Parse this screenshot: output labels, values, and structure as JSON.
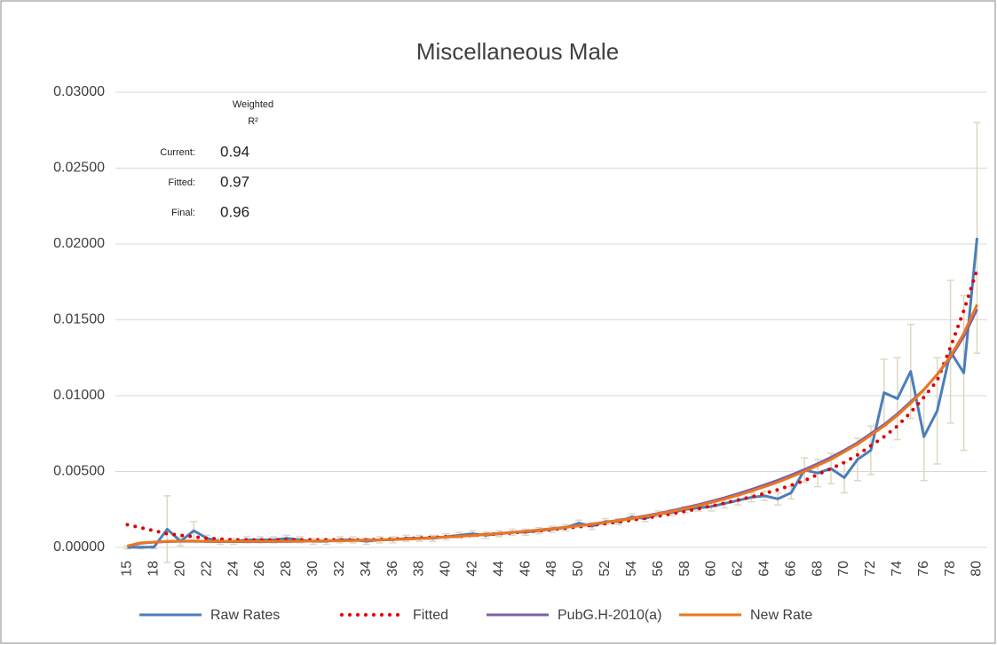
{
  "chart_data": {
    "type": "line",
    "title": "Miscellaneous Male",
    "categories": [
      15,
      null,
      18,
      null,
      20,
      null,
      22,
      null,
      24,
      null,
      26,
      null,
      28,
      null,
      30,
      null,
      32,
      null,
      34,
      null,
      36,
      null,
      38,
      null,
      40,
      null,
      42,
      null,
      44,
      null,
      46,
      null,
      48,
      null,
      50,
      null,
      52,
      null,
      54,
      null,
      56,
      null,
      58,
      null,
      60,
      null,
      62,
      null,
      64,
      null,
      66,
      null,
      68,
      null,
      70,
      null,
      72,
      null,
      74,
      null,
      76,
      null,
      78,
      null,
      80
    ],
    "ylim": [
      0,
      0.03
    ],
    "yticks": [
      {
        "value": 0,
        "label": "0.00000"
      },
      {
        "value": 0.005,
        "label": "0.00500"
      },
      {
        "value": 0.01,
        "label": "0.01000"
      },
      {
        "value": 0.015,
        "label": "0.01500"
      },
      {
        "value": 0.02,
        "label": "0.02000"
      },
      {
        "value": 0.025,
        "label": "0.02500"
      },
      {
        "value": 0.03,
        "label": "0.03000"
      }
    ],
    "grid": true,
    "legend": "bottom",
    "error_color": "#ddd8c0",
    "series": [
      {
        "name": "Raw Rates",
        "color": "#4a7ebb",
        "dash": "solid",
        "values": [
          1e-05,
          1e-05,
          2e-05,
          0.0012,
          0.0004,
          0.0011,
          0.0006,
          0.0004,
          0.0004,
          0.0005,
          0.0005,
          0.0005,
          0.0006,
          0.0005,
          0.0004,
          0.0004,
          0.0005,
          0.0005,
          0.0004,
          0.0005,
          0.0005,
          0.0006,
          0.0006,
          0.0006,
          0.0007,
          0.0008,
          0.0009,
          0.0008,
          0.0009,
          0.001,
          0.001,
          0.0011,
          0.0012,
          0.0013,
          0.0016,
          0.0014,
          0.0017,
          0.0017,
          0.002,
          0.0019,
          0.0022,
          0.0023,
          0.0025,
          0.0026,
          0.0027,
          0.0029,
          0.0031,
          0.0033,
          0.0034,
          0.0032,
          0.0036,
          0.0051,
          0.0049,
          0.0052,
          0.0046,
          0.0058,
          0.0064,
          0.0102,
          0.0098,
          0.0116,
          0.0073,
          0.009,
          0.0129,
          0.0115,
          0.0204
        ],
        "errors": [
          0.0001,
          0.0001,
          0.0001,
          0.0022,
          0.0003,
          0.0006,
          0.0002,
          0.0002,
          0.0002,
          0.0002,
          0.0002,
          0.0002,
          0.0002,
          0.0002,
          0.0002,
          0.0002,
          0.0002,
          0.0002,
          0.0002,
          0.0002,
          0.0002,
          0.0002,
          0.0002,
          0.0002,
          0.0002,
          0.0002,
          0.0002,
          0.0002,
          0.0002,
          0.0002,
          0.0002,
          0.0002,
          0.0002,
          0.0002,
          0.0002,
          0.0002,
          0.0002,
          0.0002,
          0.0002,
          0.0002,
          0.0002,
          0.0002,
          0.0002,
          0.0002,
          0.0003,
          0.0003,
          0.0003,
          0.0003,
          0.0003,
          0.0004,
          0.0004,
          0.0008,
          0.0009,
          0.001,
          0.001,
          0.0014,
          0.0016,
          0.0022,
          0.0027,
          0.0031,
          0.0029,
          0.0035,
          0.0047,
          0.0051,
          0.0076
        ]
      },
      {
        "name": "Fitted",
        "color": "#e00000",
        "dash": "dotted",
        "values": [
          0.0015,
          0.0013,
          0.0011,
          0.0009,
          0.0008,
          0.0007,
          0.0006,
          0.00055,
          0.0005,
          0.0005,
          0.0005,
          0.0005,
          0.0005,
          0.0005,
          0.0005,
          0.0005,
          0.0005,
          0.0005,
          0.0005,
          0.00052,
          0.00055,
          0.00058,
          0.00062,
          0.00066,
          0.0007,
          0.00074,
          0.00079,
          0.00084,
          0.0009,
          0.00096,
          0.00103,
          0.0011,
          0.00118,
          0.00127,
          0.00136,
          0.00146,
          0.00157,
          0.00168,
          0.0018,
          0.00193,
          0.00207,
          0.00222,
          0.00238,
          0.00255,
          0.00273,
          0.00292,
          0.00312,
          0.00333,
          0.00356,
          0.0038,
          0.0041,
          0.0044,
          0.0048,
          0.0052,
          0.0056,
          0.0061,
          0.0067,
          0.0073,
          0.008,
          0.0089,
          0.0099,
          0.011,
          0.0132,
          0.0156,
          0.0183
        ]
      },
      {
        "name": "PubG.H-2010(a)",
        "color": "#7f5fa8",
        "dash": "solid",
        "values": [
          5e-05,
          0.00028,
          0.00034,
          0.00038,
          0.0004,
          0.0004,
          0.00039,
          0.00038,
          0.00038,
          0.00038,
          0.00038,
          0.00039,
          0.00039,
          0.0004,
          0.00042,
          0.00043,
          0.00044,
          0.00046,
          0.00048,
          0.0005,
          0.00053,
          0.00056,
          0.0006,
          0.00064,
          0.00069,
          0.00074,
          0.0008,
          0.00086,
          0.00092,
          0.00099,
          0.00107,
          0.00115,
          0.00124,
          0.00133,
          0.00143,
          0.00154,
          0.00166,
          0.00179,
          0.00193,
          0.00208,
          0.00224,
          0.00242,
          0.00261,
          0.00282,
          0.00304,
          0.00328,
          0.00354,
          0.00382,
          0.00412,
          0.00443,
          0.00477,
          0.00513,
          0.00552,
          0.00594,
          0.0064,
          0.0069,
          0.0075,
          0.0081,
          0.0088,
          0.0096,
          0.0104,
          0.0114,
          0.0125,
          0.0139,
          0.0157
        ]
      },
      {
        "name": "New Rate",
        "color": "#e87722",
        "dash": "solid",
        "values": [
          0.0001,
          0.0003,
          0.00035,
          0.0004,
          0.00042,
          0.00042,
          0.0004,
          0.0004,
          0.0004,
          0.0004,
          0.0004,
          0.0004,
          0.0004,
          0.00041,
          0.00042,
          0.00043,
          0.00044,
          0.00045,
          0.00047,
          0.0005,
          0.00052,
          0.00055,
          0.00058,
          0.00063,
          0.00068,
          0.00073,
          0.00079,
          0.00085,
          0.00091,
          0.00098,
          0.00106,
          0.00114,
          0.00123,
          0.00132,
          0.00142,
          0.00153,
          0.00165,
          0.00177,
          0.0019,
          0.00205,
          0.0022,
          0.00237,
          0.00255,
          0.00275,
          0.00296,
          0.00319,
          0.00344,
          0.00371,
          0.004,
          0.0043,
          0.00465,
          0.005,
          0.0054,
          0.0058,
          0.0063,
          0.0068,
          0.0074,
          0.008,
          0.0087,
          0.0095,
          0.0104,
          0.0114,
          0.0126,
          0.0141,
          0.016
        ]
      }
    ],
    "annotation": {
      "header": [
        "Weighted",
        "R²"
      ],
      "rows": [
        {
          "label": "Current:",
          "value": 0.94
        },
        {
          "label": "Fitted:",
          "value": 0.97
        },
        {
          "label": "Final:",
          "value": 0.96
        }
      ]
    }
  }
}
